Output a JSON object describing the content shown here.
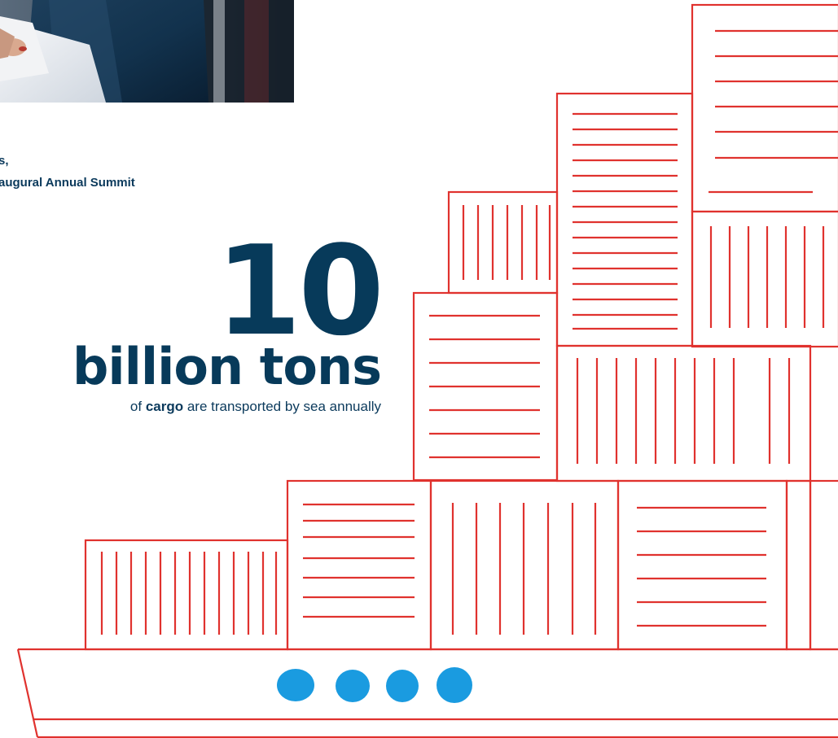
{
  "caption": {
    "line1": "s,",
    "line2": "augural Annual Summit"
  },
  "stat": {
    "number": "10",
    "unit": "billion tons",
    "description_prefix": "of ",
    "description_emphasis": "cargo",
    "description_suffix": " are transported by sea annually"
  },
  "colors": {
    "navy": "#073a5a",
    "container_red": "#e0322e",
    "porthole_blue": "#1a9be0"
  },
  "icons": {
    "photo": "cropped-photo-person-holding-papers",
    "ship": "cargo-ship-container-illustration"
  }
}
